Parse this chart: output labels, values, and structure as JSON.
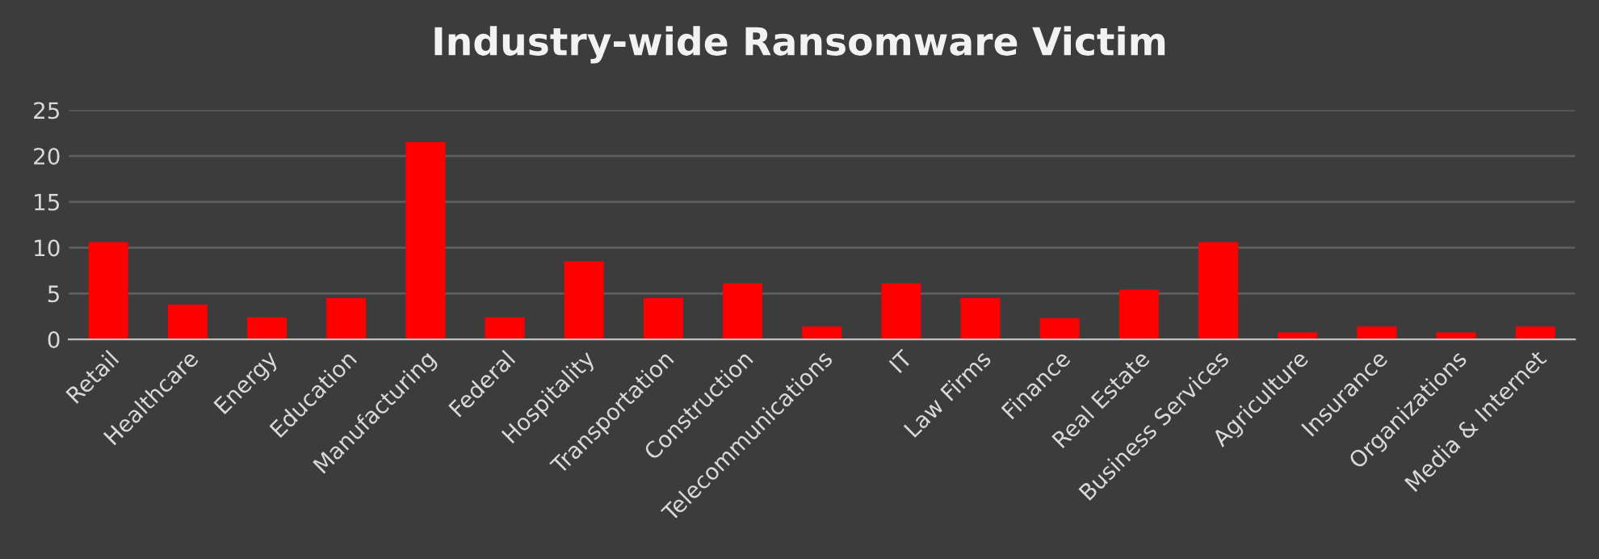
{
  "chart_data": {
    "type": "bar",
    "title": "Industry-wide Ransomware Victim",
    "categories": [
      "Retail",
      "Healthcare",
      "Energy",
      "Education",
      "Manufacturing",
      "Federal",
      "Hospitality",
      "Transportation",
      "Construction",
      "Telecommunications",
      "IT",
      "Law Firms",
      "Finance",
      "Real Estate",
      "Business Services",
      "Agriculture",
      "Insurance",
      "Organizations",
      "Media & Internet"
    ],
    "values": [
      10.6,
      3.8,
      2.4,
      4.5,
      21.5,
      2.4,
      8.5,
      4.5,
      6.1,
      1.4,
      6.1,
      4.5,
      2.3,
      5.4,
      10.6,
      0.75,
      1.4,
      0.75,
      1.4
    ],
    "color": "#ff0000",
    "ylim": [
      0,
      25
    ],
    "yticks": [
      0,
      5,
      10,
      15,
      20,
      25
    ],
    "grid": "y",
    "legend": false
  }
}
